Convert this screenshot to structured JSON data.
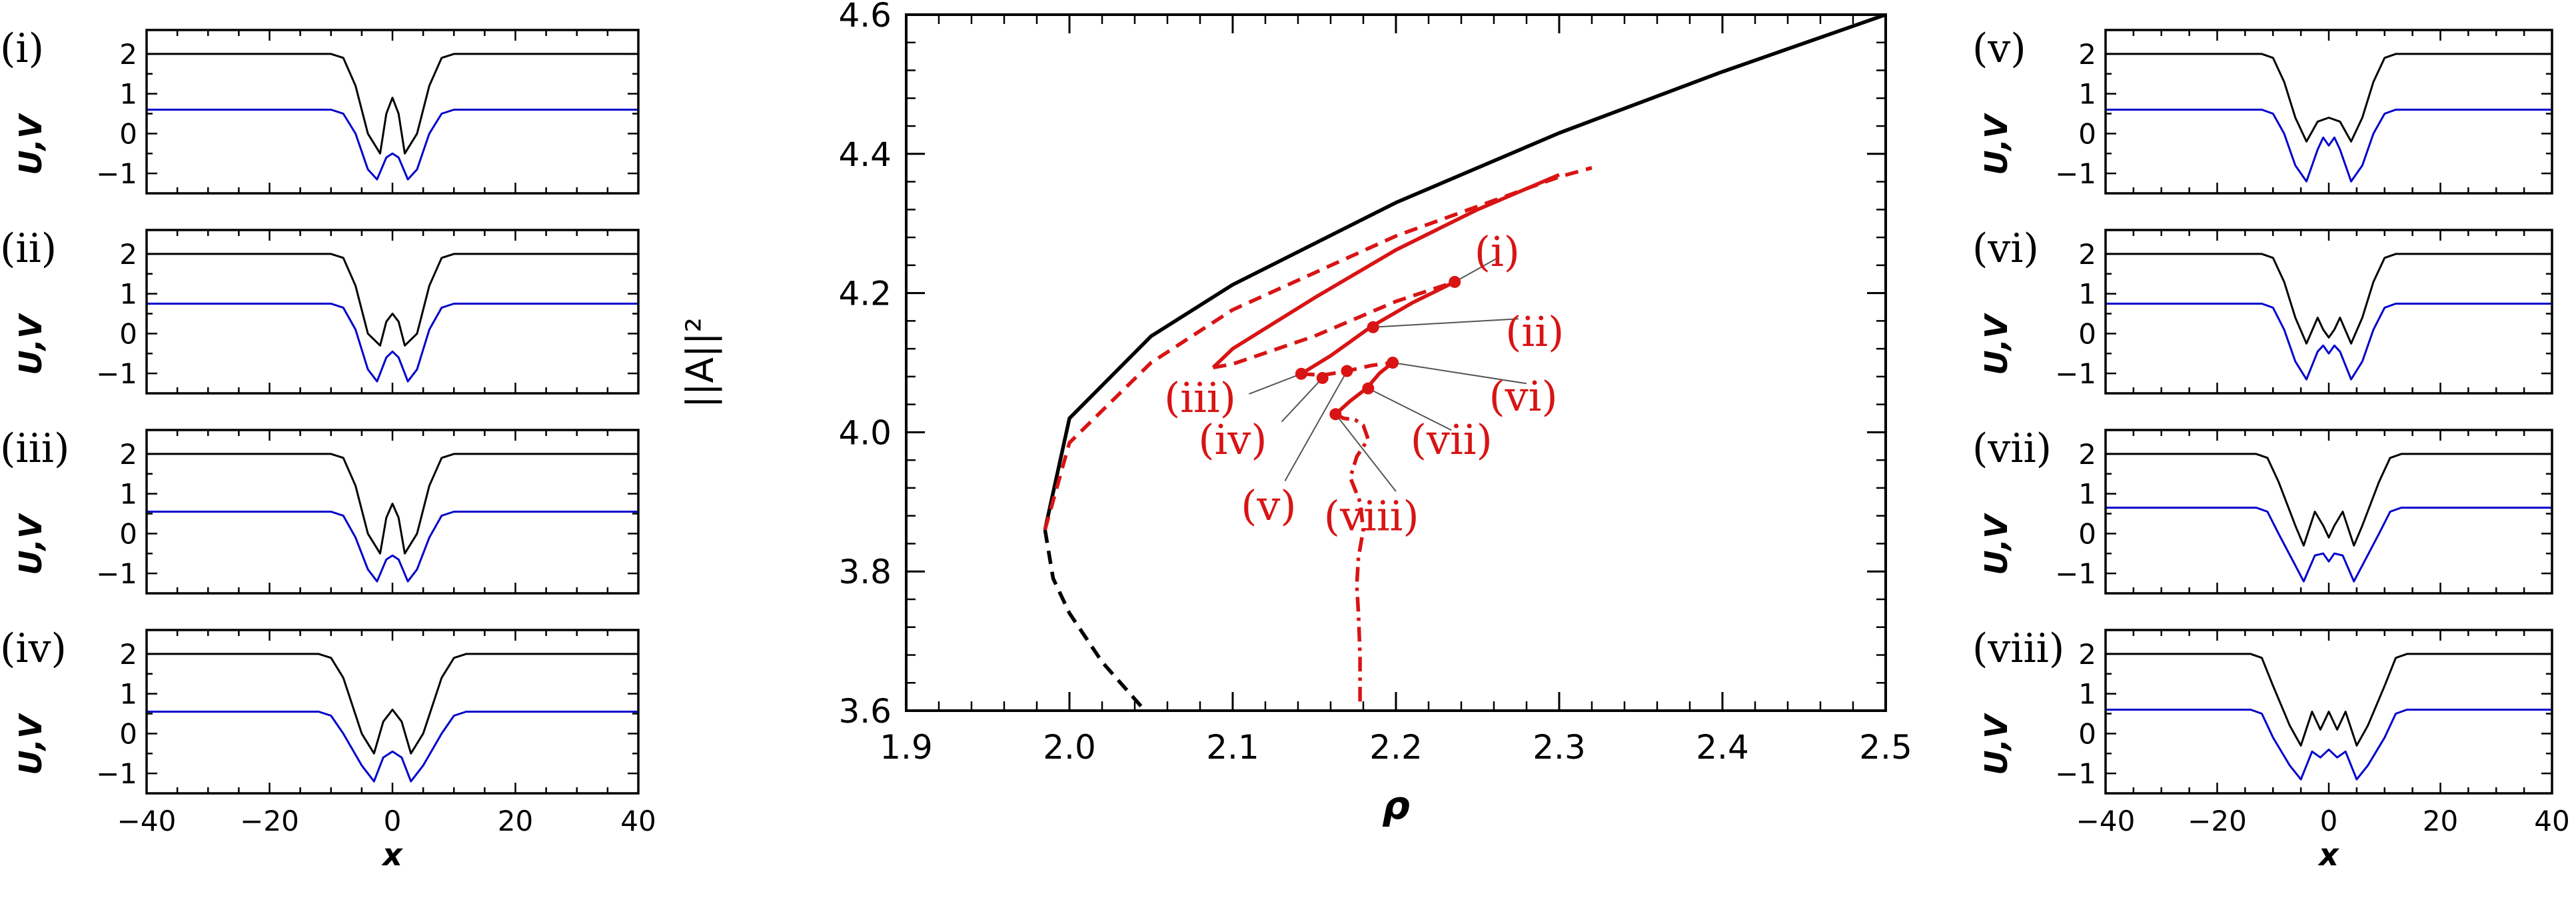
{
  "colors": {
    "black": "#000000",
    "blue": "#0000cc",
    "red": "#d81414",
    "gray": "#555555"
  },
  "chart_data": [
    {
      "type": "line",
      "title": "",
      "xlabel": "ρ",
      "ylabel": "||A||²",
      "xlim": [
        1.9,
        2.5
      ],
      "ylim": [
        3.6,
        4.6
      ],
      "xticks": [
        "1.9",
        "2.0",
        "2.1",
        "2.2",
        "2.3",
        "2.4",
        "2.5"
      ],
      "yticks": [
        "3.6",
        "3.8",
        "4.0",
        "4.2",
        "4.4",
        "4.6"
      ],
      "grid": false,
      "series": [
        {
          "style": "solid-black",
          "x": [
            1.985,
            2.0,
            2.05,
            2.1,
            2.2,
            2.3,
            2.4,
            2.5
          ],
          "y": [
            3.86,
            4.02,
            4.138,
            4.212,
            4.33,
            4.43,
            4.518,
            4.6
          ]
        },
        {
          "style": "dashed-black",
          "x": [
            1.985,
            1.99,
            2.0,
            2.02,
            2.05
          ],
          "y": [
            3.86,
            3.79,
            3.74,
            3.67,
            3.59
          ]
        },
        {
          "style": "dashed-red",
          "x": [
            1.985,
            2.0,
            2.05,
            2.1,
            2.2,
            2.3,
            2.32
          ],
          "y": [
            3.86,
            3.985,
            4.1,
            4.176,
            4.282,
            4.367,
            4.38
          ]
        },
        {
          "style": "solid-red",
          "x": [
            2.088,
            2.1,
            2.15,
            2.2,
            2.25,
            2.3
          ],
          "y": [
            4.093,
            4.12,
            4.193,
            4.262,
            4.32,
            4.37
          ]
        },
        {
          "style": "dashed-red",
          "x": [
            2.088,
            2.1,
            2.15,
            2.2,
            2.236
          ],
          "y": [
            4.093,
            4.098,
            4.138,
            4.188,
            4.216
          ]
        },
        {
          "style": "solid-red",
          "x": [
            2.142,
            2.16,
            2.185,
            2.21,
            2.236
          ],
          "y": [
            4.084,
            4.11,
            4.152,
            4.186,
            4.216
          ]
        },
        {
          "style": "dashed-red",
          "x": [
            2.142,
            2.155,
            2.17,
            2.185,
            2.198
          ],
          "y": [
            4.084,
            4.082,
            4.088,
            4.096,
            4.1
          ]
        },
        {
          "style": "solid-red",
          "x": [
            2.163,
            2.172,
            2.182,
            2.19,
            2.198
          ],
          "y": [
            4.026,
            4.045,
            4.063,
            4.085,
            4.1
          ]
        },
        {
          "style": "dashdot-red",
          "x": [
            2.163,
            2.168,
            2.175,
            2.18,
            2.183,
            2.176,
            2.172,
            2.178,
            2.18,
            2.177,
            2.176,
            2.177,
            2.178,
            2.178
          ],
          "y": [
            4.026,
            4.02,
            4.018,
            4.01,
            3.99,
            3.965,
            3.935,
            3.9,
            3.86,
            3.82,
            3.78,
            3.74,
            3.68,
            3.61
          ]
        }
      ],
      "points": [
        {
          "label": "(i)",
          "x": 2.236,
          "y": 4.216
        },
        {
          "label": "(ii)",
          "x": 2.186,
          "y": 4.151
        },
        {
          "label": "(iii)",
          "x": 2.142,
          "y": 4.084
        },
        {
          "label": "(iv)",
          "x": 2.155,
          "y": 4.078
        },
        {
          "label": "(v)",
          "x": 2.17,
          "y": 4.088
        },
        {
          "label": "(vi)",
          "x": 2.198,
          "y": 4.1
        },
        {
          "label": "(vii)",
          "x": 2.183,
          "y": 4.063
        },
        {
          "label": "(viii)",
          "x": 2.163,
          "y": 4.026
        }
      ],
      "annotations": [
        {
          "text": "(i)",
          "x": 2.262,
          "y": 4.26,
          "lx": 2.262,
          "ly": 4.25
        },
        {
          "text": "(ii)",
          "x": 2.285,
          "y": 4.145,
          "lx": 2.275,
          "ly": 4.163
        },
        {
          "text": "(iii)",
          "x": 2.08,
          "y": 4.05,
          "lx": 2.11,
          "ly": 4.055
        },
        {
          "text": "(iv)",
          "x": 2.1,
          "y": 3.99,
          "lx": 2.13,
          "ly": 4.015
        },
        {
          "text": "(v)",
          "x": 2.122,
          "y": 3.895,
          "lx": 2.132,
          "ly": 3.93
        },
        {
          "text": "(vi)",
          "x": 2.278,
          "y": 4.052,
          "lx": 2.28,
          "ly": 4.07
        },
        {
          "text": "(vii)",
          "x": 2.234,
          "y": 3.99,
          "lx": 2.234,
          "ly": 4.003
        },
        {
          "text": "(viii)",
          "x": 2.185,
          "y": 3.88,
          "lx": 2.2,
          "ly": 3.915
        }
      ]
    },
    {
      "type": "line",
      "label": "(i)",
      "xlabel": "",
      "ylabel": "U,V",
      "xlim": [
        -40,
        40
      ],
      "ylim": [
        -1.5,
        2.6
      ],
      "yticks": [
        "-1",
        "0",
        "1",
        "2"
      ],
      "series": [
        {
          "color": "black",
          "x": [
            -40,
            -10,
            -8,
            -6,
            -4,
            -2,
            -1,
            0,
            1,
            2,
            4,
            6,
            8,
            10,
            40
          ],
          "y": [
            2.0,
            2.0,
            1.9,
            1.2,
            0.0,
            -0.5,
            0.5,
            0.9,
            0.5,
            -0.5,
            0.0,
            1.2,
            1.9,
            2.0,
            2.0
          ]
        },
        {
          "color": "blue",
          "x": [
            -40,
            -10,
            -8,
            -6,
            -4,
            -2.5,
            -1,
            0,
            1,
            2.5,
            4,
            6,
            8,
            10,
            40
          ],
          "y": [
            0.6,
            0.6,
            0.5,
            0.0,
            -0.9,
            -1.15,
            -0.6,
            -0.5,
            -0.6,
            -1.15,
            -0.9,
            0.0,
            0.5,
            0.6,
            0.6
          ]
        }
      ]
    },
    {
      "type": "line",
      "label": "(ii)",
      "xlabel": "",
      "ylabel": "U,V",
      "xlim": [
        -40,
        40
      ],
      "ylim": [
        -1.5,
        2.6
      ],
      "yticks": [
        "-1",
        "0",
        "1",
        "2"
      ],
      "series": [
        {
          "color": "black",
          "x": [
            -40,
            -10,
            -8,
            -6,
            -4,
            -2,
            -1,
            0,
            1,
            2,
            4,
            6,
            8,
            10,
            40
          ],
          "y": [
            2.0,
            2.0,
            1.9,
            1.2,
            0.0,
            -0.3,
            0.3,
            0.5,
            0.3,
            -0.3,
            0.0,
            1.2,
            1.9,
            2.0,
            2.0
          ]
        },
        {
          "color": "blue",
          "x": [
            -40,
            -10,
            -8,
            -6,
            -4,
            -2.5,
            -1,
            0,
            1,
            2.5,
            4,
            6,
            8,
            10,
            40
          ],
          "y": [
            0.75,
            0.75,
            0.65,
            0.1,
            -0.9,
            -1.2,
            -0.6,
            -0.45,
            -0.6,
            -1.2,
            -0.9,
            0.1,
            0.65,
            0.75,
            0.75
          ]
        }
      ]
    },
    {
      "type": "line",
      "label": "(iii)",
      "xlabel": "",
      "ylabel": "U,V",
      "xlim": [
        -40,
        40
      ],
      "ylim": [
        -1.5,
        2.6
      ],
      "yticks": [
        "-1",
        "0",
        "1",
        "2"
      ],
      "series": [
        {
          "color": "black",
          "x": [
            -40,
            -10,
            -8,
            -6,
            -4,
            -2,
            -1,
            0,
            1,
            2,
            4,
            6,
            8,
            10,
            40
          ],
          "y": [
            2.0,
            2.0,
            1.9,
            1.2,
            0.0,
            -0.5,
            0.4,
            0.75,
            0.4,
            -0.5,
            0.0,
            1.2,
            1.9,
            2.0,
            2.0
          ]
        },
        {
          "color": "blue",
          "x": [
            -40,
            -10,
            -8,
            -6,
            -4,
            -2.5,
            -1,
            0,
            1,
            2.5,
            4,
            6,
            8,
            10,
            40
          ],
          "y": [
            0.55,
            0.55,
            0.45,
            -0.1,
            -0.9,
            -1.2,
            -0.65,
            -0.55,
            -0.65,
            -1.2,
            -0.9,
            -0.1,
            0.45,
            0.55,
            0.55
          ]
        }
      ]
    },
    {
      "type": "line",
      "label": "(iv)",
      "xlabel": "x",
      "ylabel": "U,V",
      "xlim": [
        -40,
        40
      ],
      "ylim": [
        -1.5,
        2.6
      ],
      "xticks": [
        "−40",
        "−20",
        "0",
        "20",
        "40"
      ],
      "yticks": [
        "-1",
        "0",
        "1",
        "2"
      ],
      "series": [
        {
          "color": "black",
          "x": [
            -40,
            -12,
            -10,
            -8,
            -5,
            -3,
            -1.5,
            0,
            1.5,
            3,
            5,
            8,
            10,
            12,
            40
          ],
          "y": [
            2.0,
            2.0,
            1.9,
            1.4,
            0.0,
            -0.5,
            0.3,
            0.6,
            0.3,
            -0.5,
            0.0,
            1.4,
            1.9,
            2.0,
            2.0
          ]
        },
        {
          "color": "blue",
          "x": [
            -40,
            -12,
            -10,
            -8,
            -5,
            -3,
            -1.5,
            0,
            1.5,
            3,
            5,
            8,
            10,
            12,
            40
          ],
          "y": [
            0.55,
            0.55,
            0.45,
            0.0,
            -0.8,
            -1.2,
            -0.6,
            -0.45,
            -0.6,
            -1.2,
            -0.8,
            0.0,
            0.45,
            0.55,
            0.55
          ]
        }
      ]
    },
    {
      "type": "line",
      "label": "(v)",
      "xlabel": "",
      "ylabel": "U,V",
      "xlim": [
        -40,
        40
      ],
      "ylim": [
        -1.5,
        2.6
      ],
      "yticks": [
        "-1",
        "0",
        "1",
        "2"
      ],
      "series": [
        {
          "color": "black",
          "x": [
            -40,
            -12,
            -10,
            -8,
            -6,
            -4,
            -2,
            0,
            2,
            4,
            6,
            8,
            10,
            12,
            40
          ],
          "y": [
            2.0,
            2.0,
            1.9,
            1.3,
            0.4,
            -0.2,
            0.3,
            0.4,
            0.3,
            -0.2,
            0.4,
            1.3,
            1.9,
            2.0,
            2.0
          ]
        },
        {
          "color": "blue",
          "x": [
            -40,
            -12,
            -10,
            -8,
            -6,
            -4,
            -2,
            -1,
            0,
            1,
            2,
            4,
            6,
            8,
            10,
            12,
            40
          ],
          "y": [
            0.6,
            0.6,
            0.5,
            0.0,
            -0.8,
            -1.2,
            -0.4,
            -0.1,
            -0.3,
            -0.1,
            -0.4,
            -1.2,
            -0.8,
            0.0,
            0.5,
            0.6,
            0.6
          ]
        }
      ]
    },
    {
      "type": "line",
      "label": "(vi)",
      "xlabel": "",
      "ylabel": "U,V",
      "xlim": [
        -40,
        40
      ],
      "ylim": [
        -1.5,
        2.6
      ],
      "yticks": [
        "-1",
        "0",
        "1",
        "2"
      ],
      "series": [
        {
          "color": "black",
          "x": [
            -40,
            -12,
            -10,
            -8,
            -6,
            -4,
            -2,
            -1,
            0,
            1,
            2,
            4,
            6,
            8,
            10,
            12,
            40
          ],
          "y": [
            2.0,
            2.0,
            1.9,
            1.3,
            0.4,
            -0.25,
            0.4,
            0.1,
            -0.1,
            0.1,
            0.4,
            -0.25,
            0.4,
            1.3,
            1.9,
            2.0,
            2.0
          ]
        },
        {
          "color": "blue",
          "x": [
            -40,
            -12,
            -10,
            -8,
            -6,
            -4,
            -2,
            -1,
            0,
            1,
            2,
            4,
            6,
            8,
            10,
            12,
            40
          ],
          "y": [
            0.75,
            0.75,
            0.65,
            0.1,
            -0.7,
            -1.15,
            -0.45,
            -0.3,
            -0.5,
            -0.3,
            -0.45,
            -1.15,
            -0.7,
            0.1,
            0.65,
            0.75,
            0.75
          ]
        }
      ]
    },
    {
      "type": "line",
      "label": "(vii)",
      "xlabel": "",
      "ylabel": "U,V",
      "xlim": [
        -40,
        40
      ],
      "ylim": [
        -1.5,
        2.6
      ],
      "yticks": [
        "-1",
        "0",
        "1",
        "2"
      ],
      "series": [
        {
          "color": "black",
          "x": [
            -40,
            -13,
            -11,
            -9,
            -6,
            -4.5,
            -2.5,
            -1,
            0,
            1,
            2.5,
            4.5,
            6,
            9,
            11,
            13,
            40
          ],
          "y": [
            2.0,
            2.0,
            1.9,
            1.3,
            0.2,
            -0.3,
            0.55,
            0.2,
            -0.1,
            0.2,
            0.55,
            -0.3,
            0.2,
            1.3,
            1.9,
            2.0,
            2.0
          ]
        },
        {
          "color": "blue",
          "x": [
            -40,
            -13,
            -11,
            -9,
            -6,
            -4.5,
            -2.5,
            -1,
            0,
            1,
            2.5,
            4.5,
            6,
            9,
            11,
            13,
            40
          ],
          "y": [
            0.65,
            0.65,
            0.55,
            0.0,
            -0.8,
            -1.2,
            -0.55,
            -0.5,
            -0.7,
            -0.5,
            -0.55,
            -1.2,
            -0.8,
            0.0,
            0.55,
            0.65,
            0.65
          ]
        }
      ]
    },
    {
      "type": "line",
      "label": "(viii)",
      "xlabel": "x",
      "ylabel": "U,V",
      "xlim": [
        -40,
        40
      ],
      "ylim": [
        -1.5,
        2.6
      ],
      "xticks": [
        "−40",
        "−20",
        "0",
        "20",
        "40"
      ],
      "yticks": [
        "-1",
        "0",
        "1",
        "2"
      ],
      "series": [
        {
          "color": "black",
          "x": [
            -40,
            -14,
            -12,
            -10,
            -7,
            -5,
            -3,
            -1.5,
            0,
            1.5,
            3,
            5,
            7,
            10,
            12,
            14,
            40
          ],
          "y": [
            2.0,
            2.0,
            1.9,
            1.2,
            0.2,
            -0.3,
            0.55,
            0.1,
            0.55,
            0.1,
            0.55,
            -0.3,
            0.2,
            1.2,
            1.9,
            2.0,
            2.0
          ]
        },
        {
          "color": "blue",
          "x": [
            -40,
            -14,
            -12,
            -10,
            -7,
            -5,
            -3,
            -1.5,
            0,
            1.5,
            3,
            5,
            7,
            10,
            12,
            14,
            40
          ],
          "y": [
            0.6,
            0.6,
            0.5,
            -0.1,
            -0.8,
            -1.15,
            -0.45,
            -0.6,
            -0.4,
            -0.6,
            -0.45,
            -1.15,
            -0.8,
            -0.1,
            0.5,
            0.6,
            0.6
          ]
        }
      ]
    }
  ]
}
